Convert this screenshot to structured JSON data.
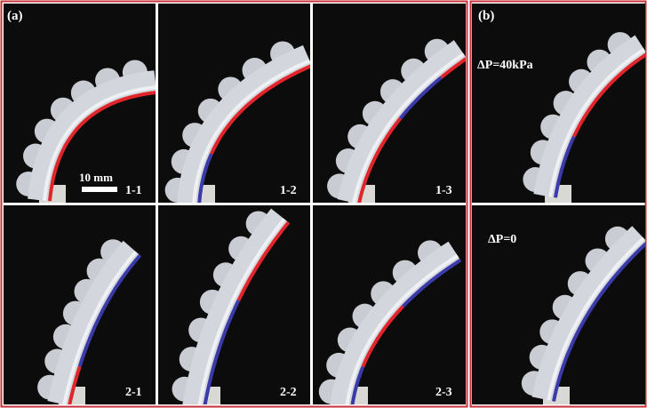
{
  "panel_a": {
    "label": "(a)",
    "scale_bar": "10 mm",
    "cells": [
      "1-1",
      "1-2",
      "1-3",
      "2-1",
      "2-2",
      "2-3"
    ]
  },
  "panel_b": {
    "label": "(b)",
    "states": [
      "ΔP=40kPa",
      "ΔP=0"
    ]
  }
}
